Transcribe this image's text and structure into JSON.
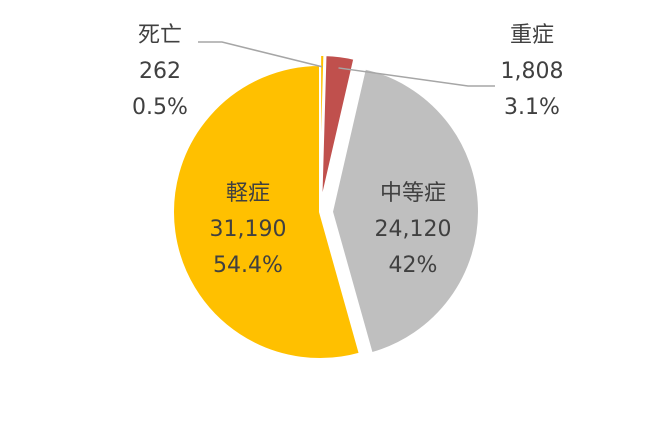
{
  "chart_data": {
    "type": "pie",
    "title": "",
    "slices": [
      {
        "name": "死亡",
        "value_label": "262",
        "percent_label": "0.5%",
        "value": 262,
        "percent": 0.5,
        "color": "#FFC000",
        "exploded": true
      },
      {
        "name": "重症",
        "value_label": "1,808",
        "percent_label": "3.1%",
        "value": 1808,
        "percent": 3.1,
        "color": "#C0504D",
        "exploded": true
      },
      {
        "name": "中等症",
        "value_label": "24,120",
        "percent_label": "42%",
        "value": 24120,
        "percent": 42,
        "color": "#BFBFBF",
        "exploded": true
      },
      {
        "name": "軽症",
        "value_label": "31,190",
        "percent_label": "54.4%",
        "value": 31190,
        "percent": 54.4,
        "color": "#FFC000",
        "exploded": false
      }
    ]
  }
}
